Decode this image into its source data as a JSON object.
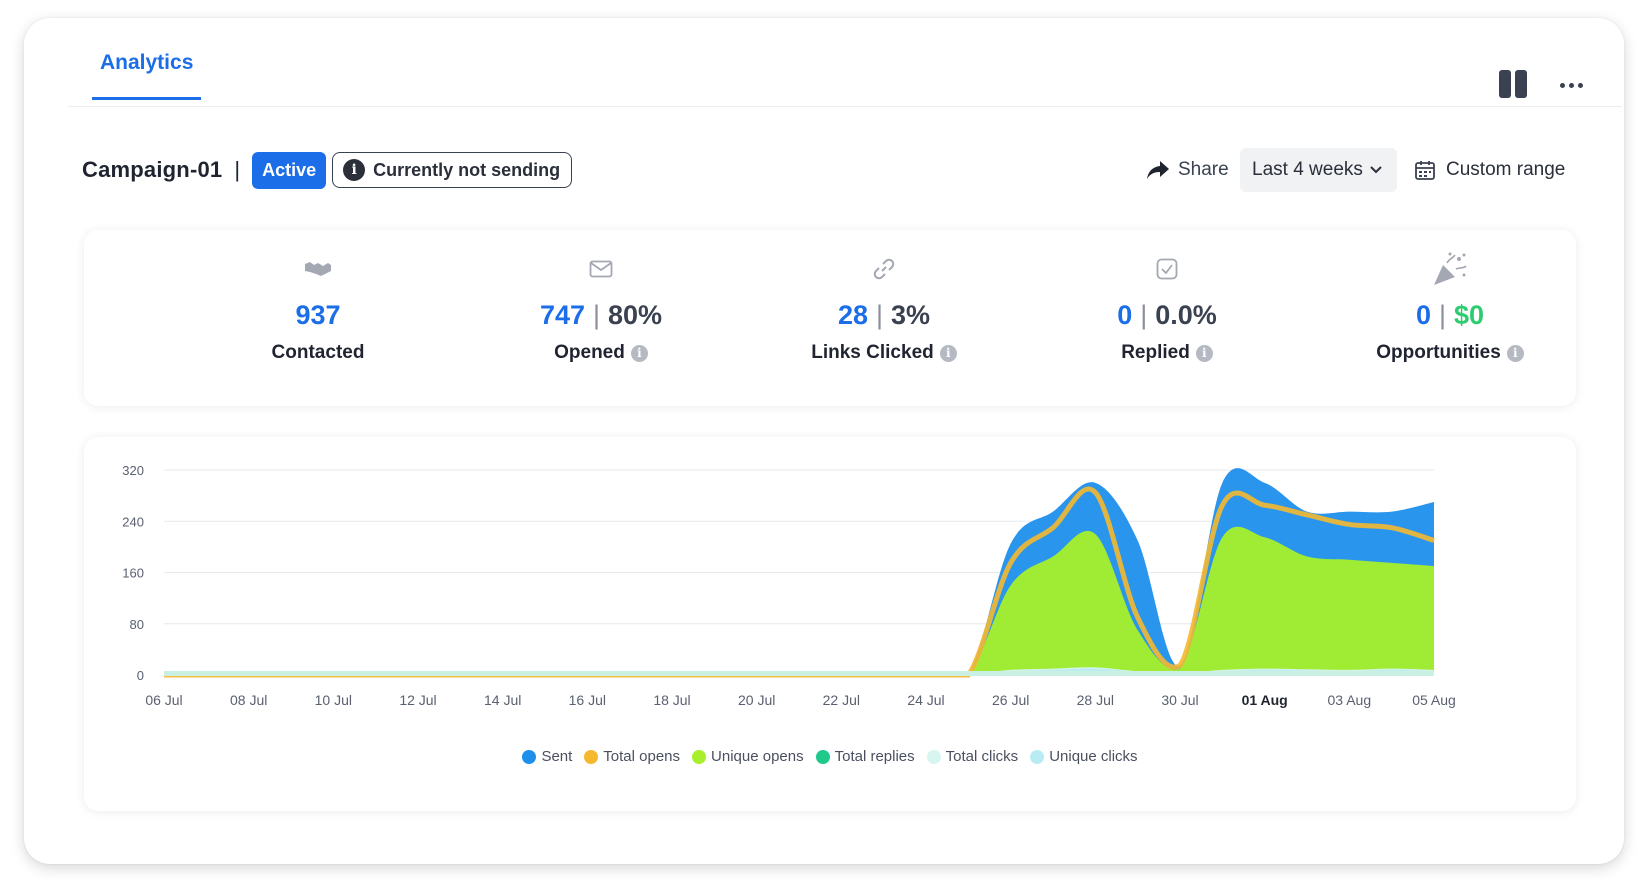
{
  "tabs": {
    "active_label": "Analytics"
  },
  "icons": {
    "columns": "columns-icon",
    "more": "more-icon"
  },
  "campaign": {
    "name": "Campaign-01",
    "separator": "|",
    "status_badge": "Active",
    "sending_status": "Currently not sending"
  },
  "actions": {
    "share_label": "Share",
    "range_value": "Last 4 weeks",
    "custom_range_label": "Custom range"
  },
  "stats": {
    "contacted": {
      "value": "937",
      "label": "Contacted",
      "icon": "handshake-icon"
    },
    "opened": {
      "value": "747",
      "rate": "80%",
      "label": "Opened",
      "icon": "envelope-icon"
    },
    "links_clicked": {
      "value": "28",
      "rate": "3%",
      "label": "Links Clicked",
      "icon": "link-icon"
    },
    "replied": {
      "value": "0",
      "rate": "0.0%",
      "label": "Replied",
      "icon": "checkbox-icon"
    },
    "opportunities": {
      "value": "0",
      "money": "$0",
      "label": "Opportunities",
      "icon": "party-popper-icon"
    }
  },
  "colors": {
    "accent": "#1b6ee8",
    "sent": "#1f8fec",
    "total_opens": "#f5b82e",
    "unique_opens": "#a6ef2a",
    "total_replies": "#1ec98a",
    "total_clicks": "#d7f6ef",
    "unique_clicks": "#b8ecf2"
  },
  "chart_data": {
    "type": "area",
    "x": [
      "06 Jul",
      "07 Jul",
      "08 Jul",
      "09 Jul",
      "10 Jul",
      "11 Jul",
      "12 Jul",
      "13 Jul",
      "14 Jul",
      "15 Jul",
      "16 Jul",
      "17 Jul",
      "18 Jul",
      "19 Jul",
      "20 Jul",
      "21 Jul",
      "22 Jul",
      "23 Jul",
      "24 Jul",
      "25 Jul",
      "26 Jul",
      "27 Jul",
      "28 Jul",
      "29 Jul",
      "30 Jul",
      "31 Jul",
      "01 Aug",
      "02 Aug",
      "03 Aug",
      "04 Aug",
      "05 Aug"
    ],
    "tick_labels": [
      "06 Jul",
      "08 Jul",
      "10 Jul",
      "12 Jul",
      "14 Jul",
      "16 Jul",
      "18 Jul",
      "20 Jul",
      "22 Jul",
      "24 Jul",
      "26 Jul",
      "28 Jul",
      "30 Jul",
      "01 Aug",
      "03 Aug",
      "05 Aug"
    ],
    "bold_tick": "01 Aug",
    "ylim": [
      0,
      320
    ],
    "yticks": [
      0,
      80,
      160,
      240,
      320
    ],
    "grid": true,
    "legend_position": "bottom",
    "series": [
      {
        "name": "Sent",
        "values": [
          0,
          0,
          0,
          0,
          0,
          0,
          0,
          0,
          0,
          0,
          0,
          0,
          0,
          0,
          0,
          0,
          0,
          0,
          0,
          0,
          205,
          255,
          300,
          210,
          15,
          300,
          300,
          255,
          255,
          255,
          270
        ]
      },
      {
        "name": "Total opens",
        "values": [
          0,
          0,
          0,
          0,
          0,
          0,
          0,
          0,
          0,
          0,
          0,
          0,
          0,
          0,
          0,
          0,
          0,
          0,
          0,
          0,
          175,
          230,
          285,
          90,
          15,
          265,
          265,
          250,
          235,
          230,
          210
        ]
      },
      {
        "name": "Unique opens",
        "values": [
          0,
          0,
          0,
          0,
          0,
          0,
          0,
          0,
          0,
          0,
          0,
          0,
          0,
          0,
          0,
          0,
          0,
          0,
          0,
          0,
          140,
          185,
          220,
          70,
          10,
          215,
          215,
          185,
          180,
          175,
          170
        ]
      },
      {
        "name": "Total replies",
        "values": [
          0,
          0,
          0,
          0,
          0,
          0,
          0,
          0,
          0,
          0,
          0,
          0,
          0,
          0,
          0,
          0,
          0,
          0,
          0,
          0,
          0,
          0,
          0,
          0,
          0,
          0,
          0,
          0,
          0,
          0,
          0
        ]
      },
      {
        "name": "Total clicks",
        "values": [
          2,
          2,
          2,
          2,
          2,
          2,
          2,
          2,
          2,
          2,
          2,
          2,
          2,
          2,
          2,
          2,
          2,
          2,
          2,
          2,
          8,
          10,
          12,
          6,
          3,
          8,
          10,
          9,
          8,
          10,
          8
        ]
      },
      {
        "name": "Unique clicks",
        "values": [
          2,
          2,
          2,
          2,
          2,
          2,
          2,
          2,
          2,
          2,
          2,
          2,
          2,
          2,
          2,
          2,
          2,
          2,
          2,
          2,
          6,
          8,
          10,
          5,
          2,
          6,
          8,
          7,
          6,
          8,
          6
        ]
      }
    ]
  }
}
